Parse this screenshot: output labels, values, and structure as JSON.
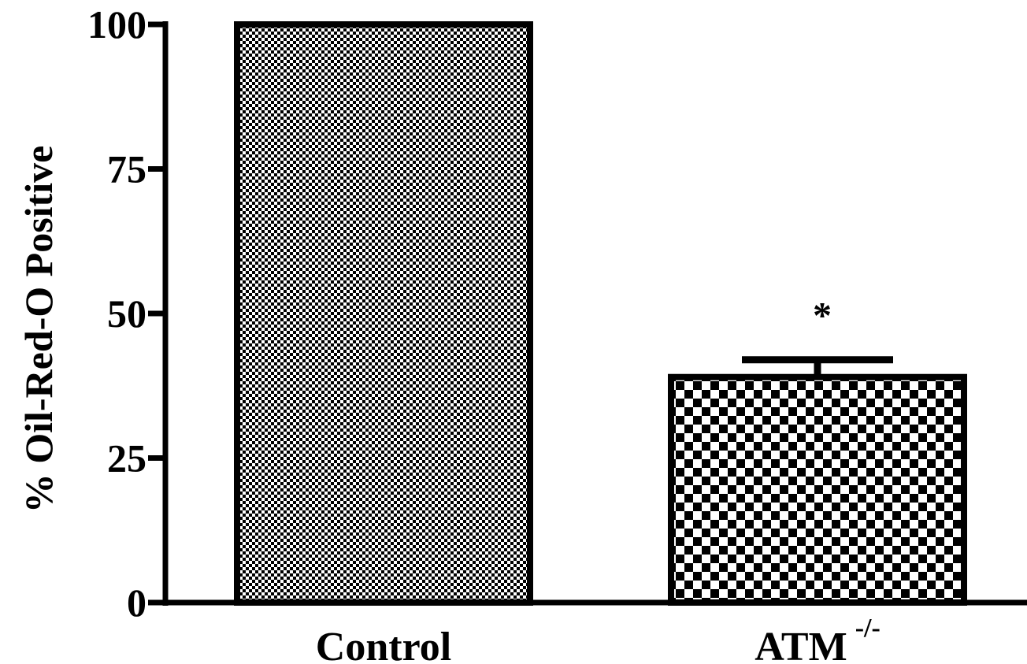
{
  "chart_data": {
    "type": "bar",
    "title": "",
    "xlabel": "",
    "ylabel": "% Oil-Red-O Positive",
    "ylim": [
      0,
      100
    ],
    "yticks": [
      0,
      25,
      50,
      75,
      100
    ],
    "grid": false,
    "legend": "none",
    "categories": [
      {
        "label": "Control",
        "superscript": ""
      },
      {
        "label": "ATM",
        "superscript": "-/-"
      }
    ],
    "values": [
      100,
      39
    ],
    "error_upper": [
      null,
      42
    ],
    "annotations": [
      {
        "category": 1,
        "text": "*"
      }
    ],
    "patterns": [
      "fine-checker",
      "coarse-checker"
    ],
    "colors": {
      "bar_fill_a": "#000000",
      "bar_fill_b": "#ffffff",
      "axis": "#000000"
    }
  }
}
